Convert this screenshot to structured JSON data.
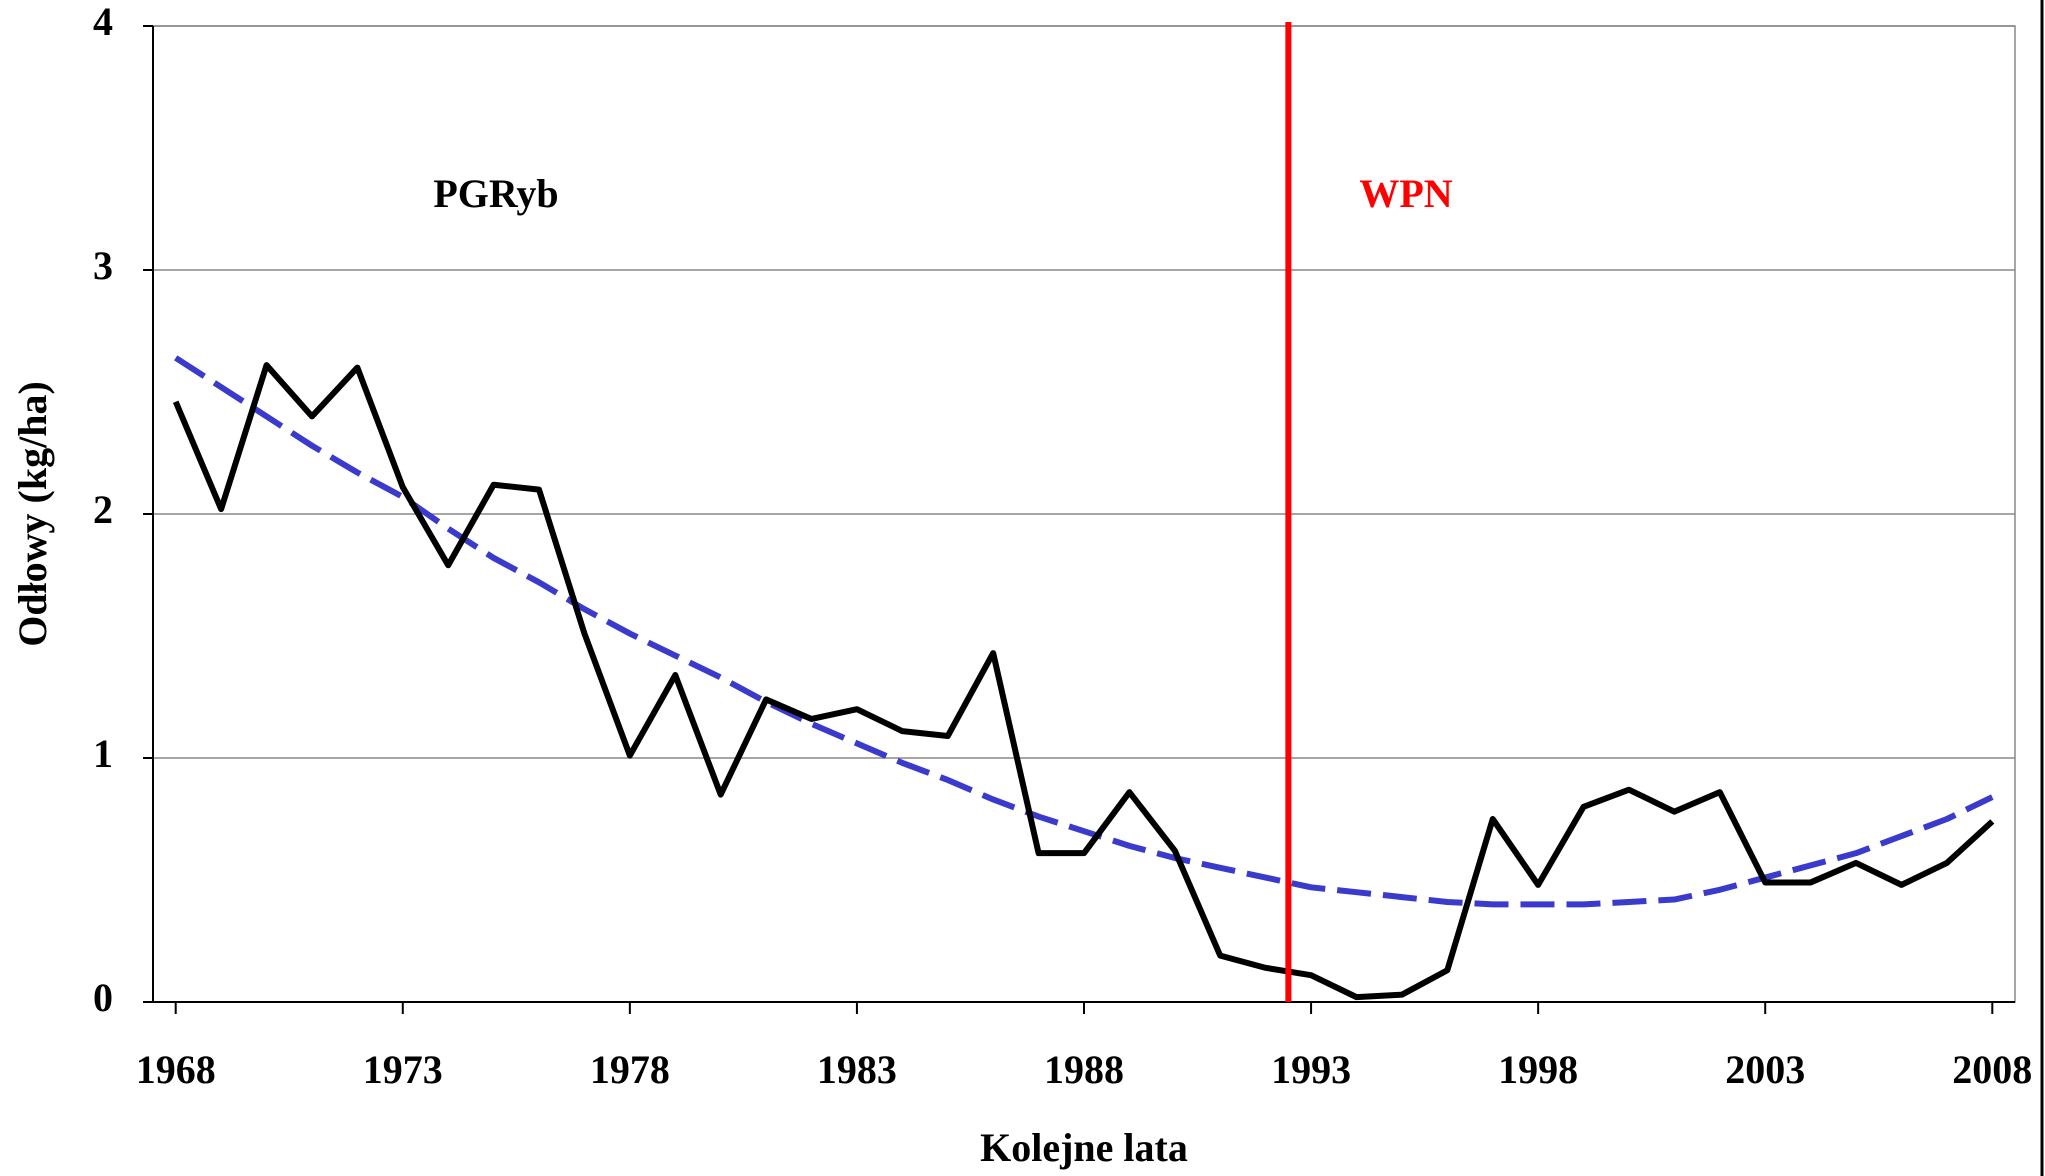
{
  "chart_data": {
    "type": "line",
    "x_label": "Kolejne lata",
    "y_label": "Odłowy (kg/ha)",
    "x": [
      1968,
      1969,
      1970,
      1971,
      1972,
      1973,
      1974,
      1975,
      1976,
      1977,
      1978,
      1979,
      1980,
      1981,
      1982,
      1983,
      1984,
      1985,
      1986,
      1987,
      1988,
      1989,
      1990,
      1991,
      1992,
      1993,
      1994,
      1995,
      1996,
      1997,
      1998,
      1999,
      2000,
      2001,
      2002,
      2003,
      2004,
      2005,
      2006,
      2007,
      2008
    ],
    "series": [
      {
        "color": "#000000",
        "style": "solid",
        "values": [
          2.46,
          2.02,
          2.61,
          2.4,
          2.6,
          2.11,
          1.79,
          2.12,
          2.1,
          1.51,
          1.01,
          1.34,
          0.85,
          1.24,
          1.16,
          1.2,
          1.11,
          1.09,
          1.43,
          0.61,
          0.61,
          0.86,
          0.62,
          0.19,
          0.14,
          0.11,
          0.02,
          0.03,
          0.13,
          0.75,
          0.48,
          0.8,
          0.87,
          0.78,
          0.86,
          0.49,
          0.49,
          0.57,
          0.48,
          0.57,
          0.74
        ]
      },
      {
        "color": "#3a3acc",
        "style": "dashed",
        "values": [
          2.64,
          2.52,
          2.4,
          2.28,
          2.17,
          2.07,
          1.94,
          1.82,
          1.72,
          1.61,
          1.51,
          1.42,
          1.33,
          1.23,
          1.14,
          1.06,
          0.98,
          0.91,
          0.83,
          0.76,
          0.7,
          0.64,
          0.59,
          0.55,
          0.51,
          0.47,
          0.45,
          0.43,
          0.41,
          0.4,
          0.4,
          0.4,
          0.41,
          0.42,
          0.46,
          0.51,
          0.56,
          0.61,
          0.68,
          0.75,
          0.84
        ]
      }
    ],
    "vline": {
      "x": 1992.5,
      "color": "#ff0000"
    },
    "annotations": [
      {
        "text": "PGRyb",
        "color": "#000000"
      },
      {
        "text": "WPN",
        "color": "#ff0000"
      }
    ],
    "xlim": [
      1967.5,
      2008.5
    ],
    "xticks": [
      1968,
      1973,
      1978,
      1983,
      1988,
      1993,
      1998,
      2003,
      2008
    ],
    "ylim": [
      0,
      4
    ],
    "yticks": [
      0,
      1,
      2,
      3,
      4
    ],
    "grid": true
  }
}
